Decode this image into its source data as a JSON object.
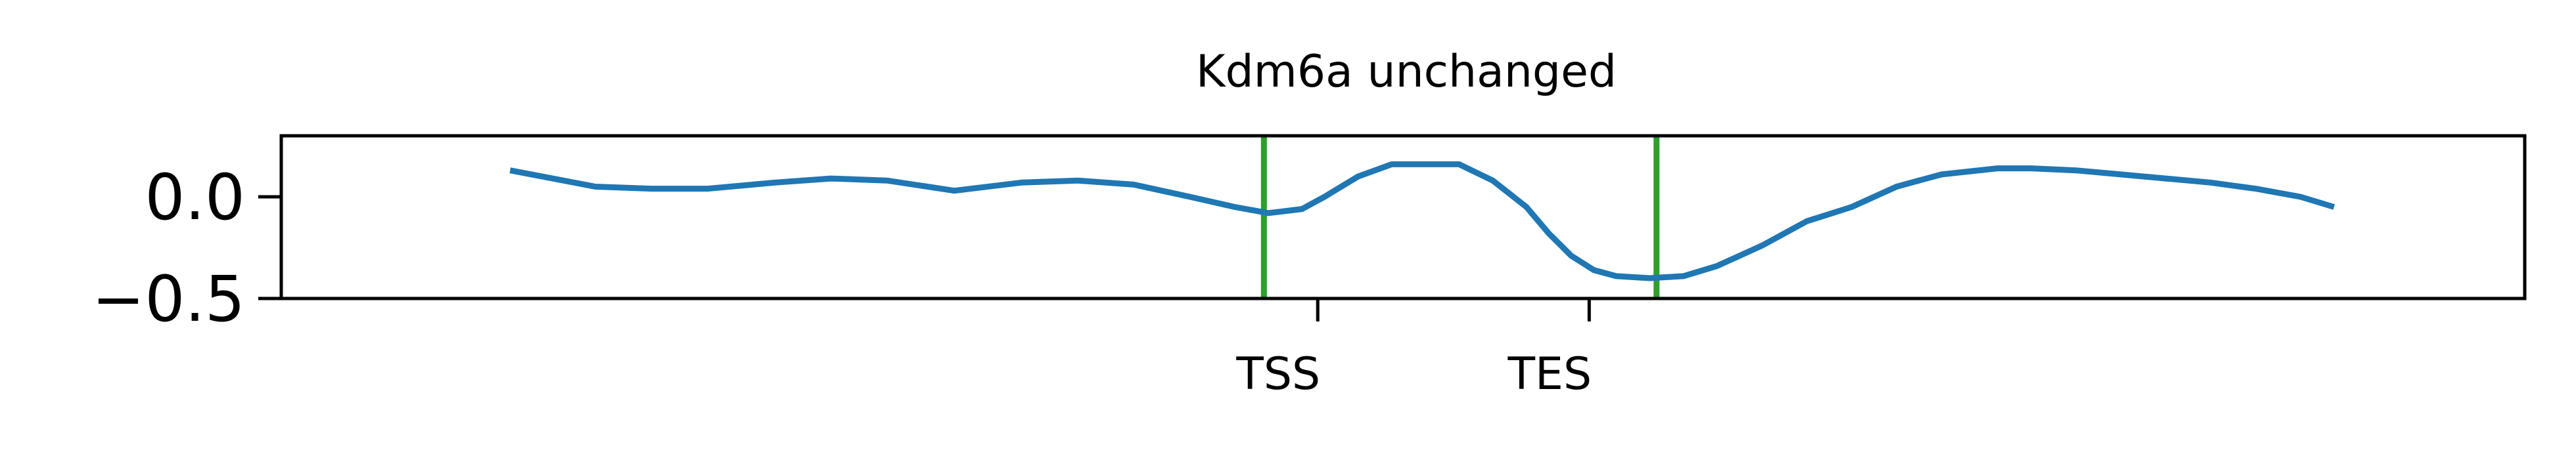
{
  "chart_data": {
    "type": "line",
    "title": "Kdm6a unchanged",
    "xlabel": "",
    "ylabel": "",
    "xlim": [
      0,
      100
    ],
    "ylim": [
      -0.5,
      0.3
    ],
    "grid": false,
    "legend": "none",
    "y_ticks": [
      {
        "value": 0.0,
        "label": "0.0"
      },
      {
        "value": -0.5,
        "label": "−0.5"
      }
    ],
    "x_ticks": [
      {
        "value": 46.2,
        "label": "TSS"
      },
      {
        "value": 58.3,
        "label": "TES"
      }
    ],
    "vlines": [
      {
        "x": 43.8,
        "color": "#2ca02c"
      },
      {
        "x": 61.3,
        "color": "#2ca02c"
      }
    ],
    "series": [
      {
        "color": "#1f77b4",
        "x": [
          10.2,
          14.0,
          16.5,
          19.0,
          22.0,
          24.5,
          27.0,
          30.0,
          33.0,
          35.5,
          38.0,
          40.5,
          42.5,
          44.0,
          45.5,
          46.5,
          48.0,
          49.5,
          51.5,
          52.5,
          54.0,
          55.5,
          56.5,
          57.5,
          58.5,
          59.5,
          61.0,
          62.5,
          64.0,
          66.0,
          68.0,
          70.0,
          72.0,
          74.0,
          76.5,
          78.0,
          80.0,
          82.0,
          84.0,
          86.0,
          88.0,
          90.0,
          91.5
        ],
        "y": [
          0.13,
          0.05,
          0.04,
          0.04,
          0.07,
          0.09,
          0.08,
          0.03,
          0.07,
          0.08,
          0.06,
          0.0,
          -0.05,
          -0.08,
          -0.06,
          0.0,
          0.1,
          0.16,
          0.16,
          0.16,
          0.08,
          -0.05,
          -0.18,
          -0.29,
          -0.36,
          -0.39,
          -0.4,
          -0.39,
          -0.34,
          -0.24,
          -0.12,
          -0.05,
          0.05,
          0.11,
          0.14,
          0.14,
          0.13,
          0.11,
          0.09,
          0.07,
          0.04,
          0.0,
          -0.05
        ]
      }
    ]
  }
}
